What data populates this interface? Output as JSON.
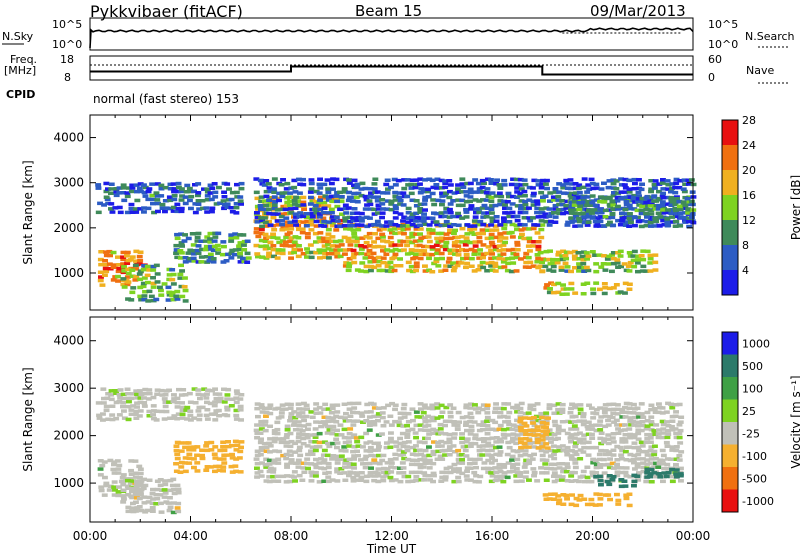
{
  "header": {
    "title": "Pykkvibaer (fitACF)",
    "beam": "Beam 15",
    "date": "09/Mar/2013"
  },
  "noise_panel": {
    "left_label": "N.Sky",
    "left_ticks": [
      "10^5",
      "10^0"
    ],
    "right_label": "N.Search",
    "right_ticks": [
      "10^5",
      "10^0"
    ]
  },
  "freq_panel": {
    "left_label_1": "Freq.",
    "left_label_2": "[MHz]",
    "left_ticks": [
      "18",
      "8"
    ],
    "right_label": "Nave",
    "right_ticks": [
      "60",
      "0"
    ],
    "cpid_label": "CPID",
    "cpid_text": "normal (fast stereo) 153"
  },
  "chart_data": [
    {
      "type": "heatmap",
      "name": "Power",
      "ylabel": "Slant Range [km]",
      "ylim": [
        180,
        4500
      ],
      "yticks": [
        "1000",
        "2000",
        "3000",
        "4000"
      ],
      "xlim": [
        "00:00",
        "24:00"
      ],
      "colorbar": {
        "label": "Power [dB]",
        "ticks": [
          "4",
          "8",
          "12",
          "16",
          "20",
          "24",
          "28"
        ],
        "colors": [
          "#1c1ce8",
          "#2c5cc4",
          "#3f8a5a",
          "#7ed321",
          "#f0b020",
          "#f07010",
          "#e81010"
        ]
      },
      "bands": [
        {
          "from_h": 0.3,
          "to_h": 2.2,
          "lo_km": 700,
          "hi_km": 1500,
          "db": 24
        },
        {
          "from_h": 1.2,
          "to_h": 3.8,
          "lo_km": 350,
          "hi_km": 1200,
          "db": 16
        },
        {
          "from_h": 3.3,
          "to_h": 6.3,
          "lo_km": 1200,
          "hi_km": 1900,
          "db": 14
        },
        {
          "from_h": 0.2,
          "to_h": 6.0,
          "lo_km": 2300,
          "hi_km": 3000,
          "db": 10
        },
        {
          "from_h": 6.5,
          "to_h": 10.0,
          "lo_km": 1300,
          "hi_km": 2700,
          "db": 22
        },
        {
          "from_h": 10.0,
          "to_h": 18.0,
          "lo_km": 1000,
          "hi_km": 2100,
          "db": 22
        },
        {
          "from_h": 6.5,
          "to_h": 24.0,
          "lo_km": 2000,
          "hi_km": 3100,
          "db": 10
        },
        {
          "from_h": 17.8,
          "to_h": 22.5,
          "lo_km": 1000,
          "hi_km": 1500,
          "db": 18
        },
        {
          "from_h": 18.0,
          "to_h": 21.5,
          "lo_km": 500,
          "hi_km": 800,
          "db": 20
        },
        {
          "from_h": 19.0,
          "to_h": 24.0,
          "lo_km": 2000,
          "hi_km": 2700,
          "db": 12
        }
      ]
    },
    {
      "type": "heatmap",
      "name": "Velocity",
      "ylabel": "Slant Range [km]",
      "ylim": [
        180,
        4500
      ],
      "yticks": [
        "1000",
        "2000",
        "3000",
        "4000"
      ],
      "xlim": [
        "00:00",
        "24:00"
      ],
      "xticks": [
        "00:00",
        "04:00",
        "08:00",
        "12:00",
        "16:00",
        "20:00",
        "00:00"
      ],
      "xlabel": "Time UT",
      "colorbar": {
        "label": "Velocity [m s⁻¹]",
        "ticks": [
          "1000",
          "500",
          "100",
          "25",
          "-25",
          "-100",
          "-500",
          "-1000"
        ],
        "colors": [
          "#1c1ce8",
          "#2c7a6a",
          "#3fa045",
          "#7ed321",
          "#c0c0b8",
          "#f5b030",
          "#f07010",
          "#e81010"
        ]
      },
      "bands": [
        {
          "from_h": 0.2,
          "to_h": 6.0,
          "lo_km": 2300,
          "hi_km": 3000,
          "v": 0
        },
        {
          "from_h": 6.5,
          "to_h": 18.0,
          "lo_km": 1000,
          "hi_km": 2700,
          "v": 0
        },
        {
          "from_h": 0.3,
          "to_h": 2.0,
          "lo_km": 700,
          "hi_km": 1500,
          "v": 0
        },
        {
          "from_h": 1.2,
          "to_h": 3.5,
          "lo_km": 350,
          "hi_km": 1100,
          "v": 0
        },
        {
          "from_h": 3.3,
          "to_h": 6.0,
          "lo_km": 1200,
          "hi_km": 1900,
          "v": -150
        },
        {
          "from_h": 18.0,
          "to_h": 23.5,
          "lo_km": 1000,
          "hi_km": 2700,
          "v": 0
        },
        {
          "from_h": 17.0,
          "to_h": 18.2,
          "lo_km": 1700,
          "hi_km": 2400,
          "v": -200
        },
        {
          "from_h": 18.0,
          "to_h": 21.5,
          "lo_km": 500,
          "hi_km": 800,
          "v": -150
        },
        {
          "from_h": 20.0,
          "to_h": 21.8,
          "lo_km": 900,
          "hi_km": 1200,
          "v": 600
        },
        {
          "from_h": 22.0,
          "to_h": 23.5,
          "lo_km": 1100,
          "hi_km": 1300,
          "v": 400
        }
      ]
    }
  ]
}
